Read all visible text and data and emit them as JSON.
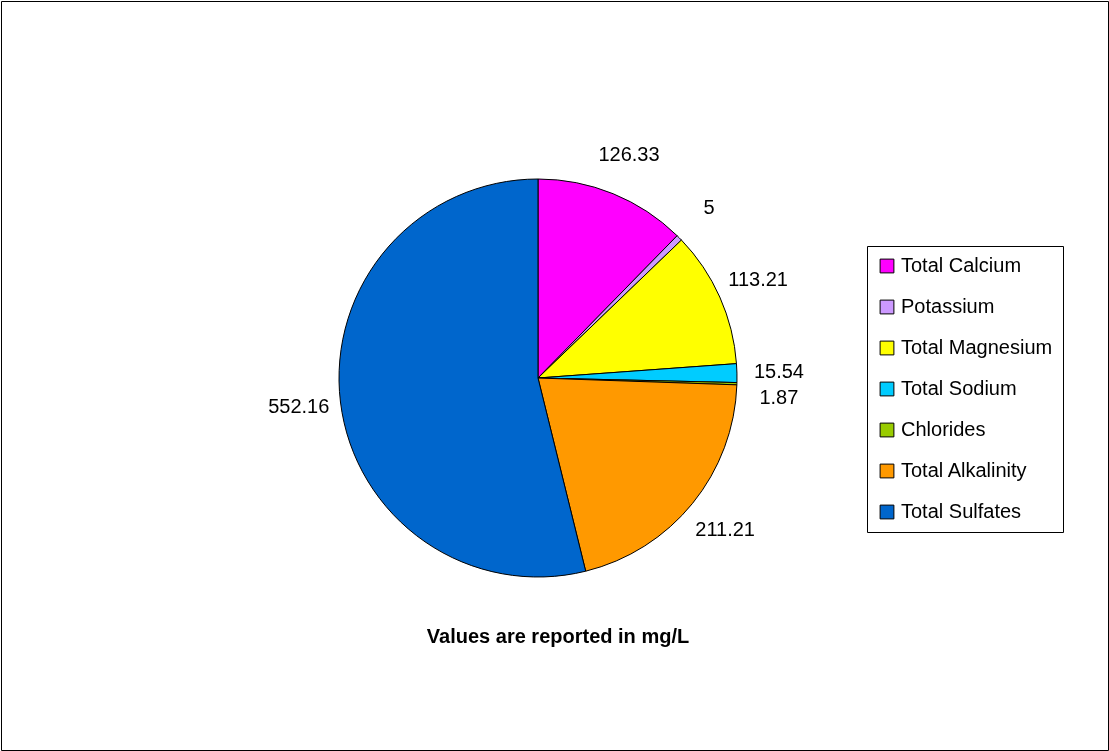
{
  "chart_data": {
    "type": "pie",
    "categories": [
      "Total Calcium",
      "Potassium",
      "Total Magnesium",
      "Total Sodium",
      "Chlorides",
      "Total Alkalinity",
      "Total Sulfates"
    ],
    "values": [
      126.33,
      5,
      113.21,
      15.54,
      1.87,
      211.21,
      552.16
    ],
    "colors": [
      "#ff00ff",
      "#cc99ff",
      "#ffff00",
      "#00ccff",
      "#99cc00",
      "#ff9900",
      "#0066cc"
    ],
    "data_labels": true,
    "legend": "right",
    "annotations": [
      "Values are reported in mg/L"
    ]
  }
}
